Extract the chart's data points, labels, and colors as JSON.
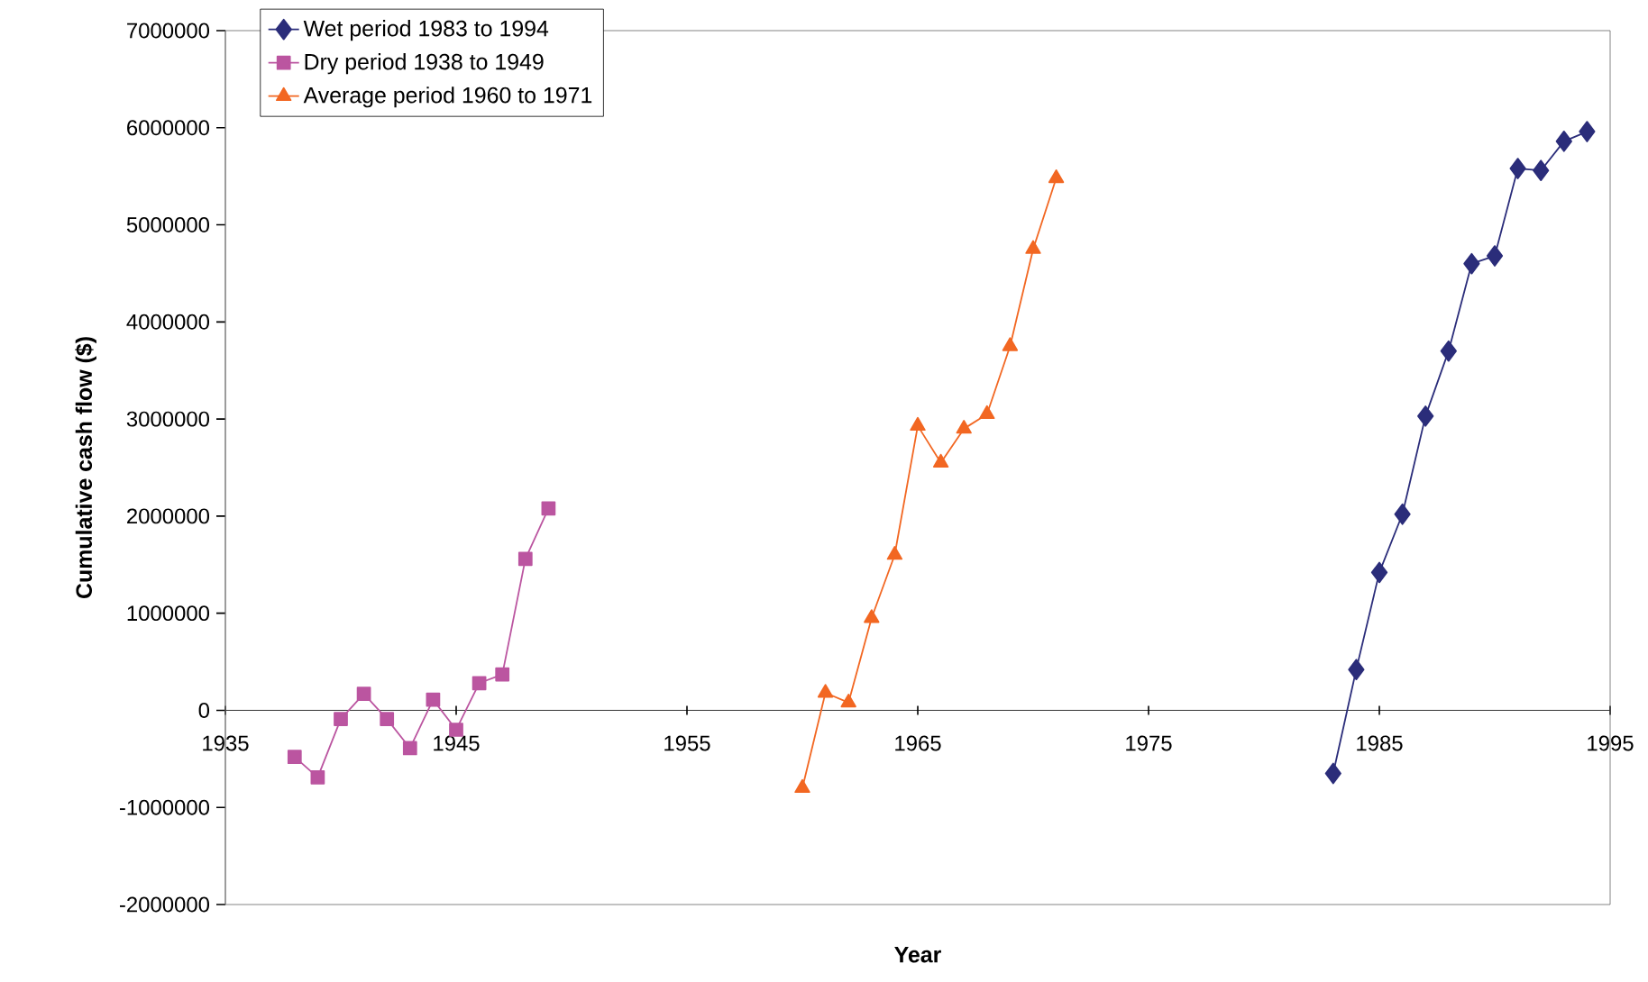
{
  "chart_data": {
    "type": "line",
    "xlabel": "Year",
    "ylabel": "Cumulative cash flow ($)",
    "xlim": [
      1935,
      1995
    ],
    "xticks": [
      1935,
      1945,
      1955,
      1965,
      1975,
      1985,
      1995
    ],
    "ylim": [
      -2000000,
      7000000
    ],
    "yticks": [
      -2000000,
      -1000000,
      0,
      1000000,
      2000000,
      3000000,
      4000000,
      5000000,
      6000000,
      7000000
    ],
    "grid": false,
    "legend": "top left",
    "series": [
      {
        "name": "Wet period 1983 to 1994",
        "color": "#2b2d7a",
        "marker": "diamond",
        "x": [
          1983,
          1984,
          1985,
          1986,
          1987,
          1988,
          1989,
          1990,
          1991,
          1992,
          1993,
          1994
        ],
        "values": [
          -650000,
          420000,
          1420000,
          2020000,
          3030000,
          3700000,
          4600000,
          4680000,
          5580000,
          5560000,
          5860000,
          5960000
        ]
      },
      {
        "name": "Dry period 1938 to 1949",
        "color": "#bb55a0",
        "marker": "square",
        "x": [
          1938,
          1939,
          1940,
          1941,
          1942,
          1943,
          1944,
          1945,
          1946,
          1947,
          1948,
          1949
        ],
        "values": [
          -480000,
          -690000,
          -90000,
          170000,
          -90000,
          -390000,
          110000,
          -200000,
          280000,
          370000,
          1560000,
          2080000
        ]
      },
      {
        "name": "Average period 1960 to 1971",
        "color": "#f26722",
        "marker": "triangle",
        "x": [
          1960,
          1961,
          1962,
          1963,
          1964,
          1965,
          1966,
          1967,
          1968,
          1969,
          1970,
          1971
        ],
        "values": [
          -800000,
          180000,
          80000,
          950000,
          1600000,
          2930000,
          2550000,
          2900000,
          3050000,
          3750000,
          4750000,
          5480000
        ]
      }
    ]
  }
}
